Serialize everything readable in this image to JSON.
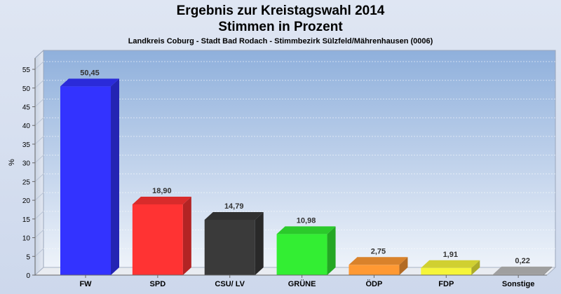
{
  "chart_title": [
    "Ergebnis zur Kreistagswahl 2014",
    "Stimmen in Prozent"
  ],
  "chart_subtitle": "Landkreis Coburg - Stadt Bad Rodach - Stimmbezirk Sülzfeld/Mährenhausen (0006)",
  "chart_data": {
    "type": "bar",
    "title": "Ergebnis zur Kreistagswahl 2014 Stimmen in Prozent",
    "subtitle": "Landkreis Coburg - Stadt Bad Rodach - Stimmbezirk Sülzfeld/Mährenhausen (0006)",
    "categories": [
      "FW",
      "SPD",
      "CSU/ LV",
      "GRÜNE",
      "ÖDP",
      "FDP",
      "Sonstige"
    ],
    "values": [
      50.45,
      18.9,
      14.79,
      10.98,
      2.75,
      1.91,
      0.22
    ],
    "value_labels": [
      "50,45",
      "18,90",
      "14,79",
      "10,98",
      "2,75",
      "1,91",
      "0,22"
    ],
    "colors": [
      "#3333ff",
      "#ff3333",
      "#3a3a3a",
      "#33ee33",
      "#ff9933",
      "#f5f53a",
      "#bbbbbb"
    ],
    "xlabel": "",
    "ylabel": "%",
    "ylim": [
      0,
      58
    ],
    "yticks": [
      0,
      5,
      10,
      15,
      20,
      25,
      30,
      35,
      40,
      45,
      50,
      55
    ],
    "grid": true,
    "legend": "none"
  }
}
